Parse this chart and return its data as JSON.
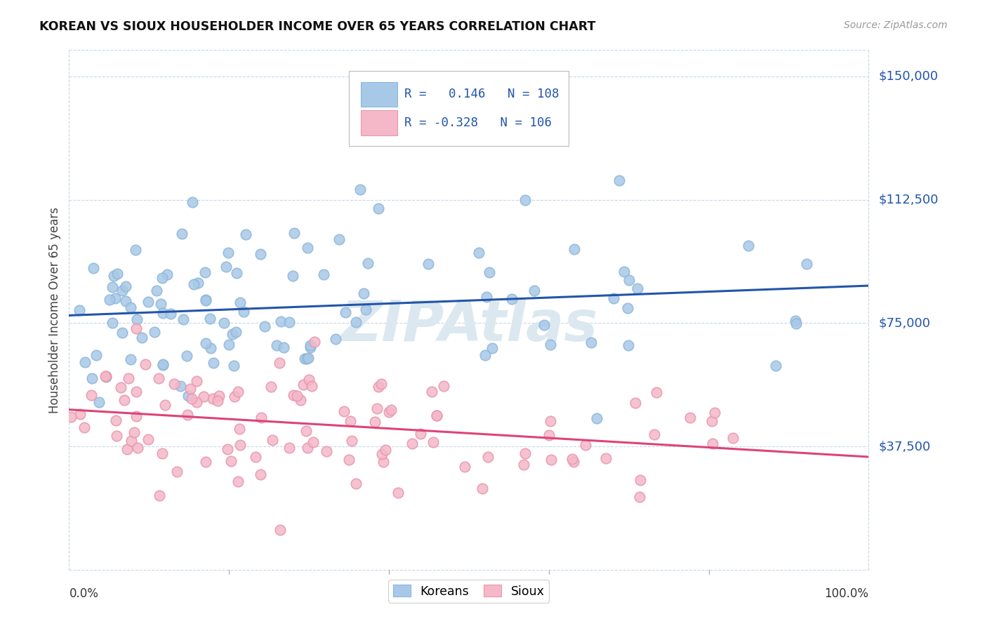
{
  "title": "KOREAN VS SIOUX HOUSEHOLDER INCOME OVER 65 YEARS CORRELATION CHART",
  "source": "Source: ZipAtlas.com",
  "ylabel": "Householder Income Over 65 years",
  "ytick_labels": [
    "$37,500",
    "$75,000",
    "$112,500",
    "$150,000"
  ],
  "ytick_values": [
    37500,
    75000,
    112500,
    150000
  ],
  "ymin": 0,
  "ymax": 158000,
  "xmin": 0,
  "xmax": 1.0,
  "korean_R": 0.146,
  "korean_N": 108,
  "sioux_R": -0.328,
  "sioux_N": 106,
  "korean_color": "#a8c8e8",
  "sioux_color": "#f4b8c8",
  "korean_line_color": "#2255aa",
  "sioux_line_color": "#dd4477",
  "background_color": "#ffffff",
  "grid_color": "#c8d8e8",
  "legend_korean_box": "#a8c8e8",
  "legend_sioux_box": "#f4b8c8",
  "legend_text_color": "#2255aa",
  "right_label_color": "#2255aa",
  "watermark_color": "#dce8f0",
  "title_color": "#111111",
  "source_color": "#999999",
  "xlabel_color": "#333333"
}
